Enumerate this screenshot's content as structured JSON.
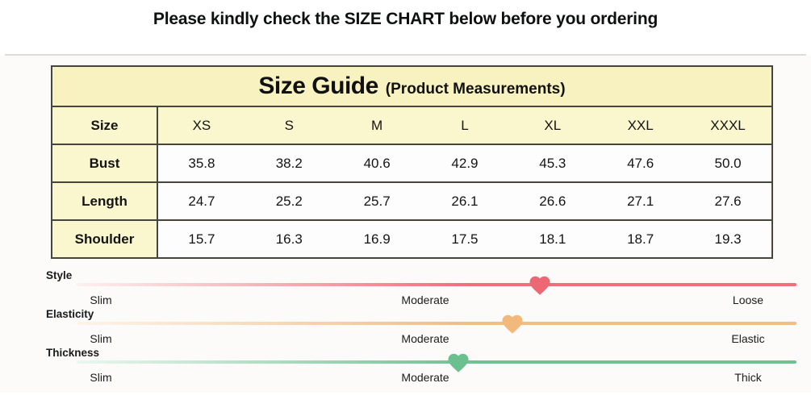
{
  "page": {
    "title": "Please kindly check the SIZE CHART below before you ordering"
  },
  "size_table": {
    "title": "Size Guide",
    "subtitle": "(Product Measurements)",
    "header": [
      "Size",
      "XS",
      "S",
      "M",
      "L",
      "XL",
      "XXL",
      "XXXL"
    ],
    "rows": [
      {
        "label": "Bust",
        "values": [
          "35.8",
          "38.2",
          "40.6",
          "42.9",
          "45.3",
          "47.6",
          "50.0"
        ]
      },
      {
        "label": "Length",
        "values": [
          "24.7",
          "25.2",
          "25.7",
          "26.1",
          "26.6",
          "27.1",
          "27.6"
        ]
      },
      {
        "label": "Shoulder",
        "values": [
          "15.7",
          "16.3",
          "16.9",
          "17.5",
          "18.1",
          "18.7",
          "19.3"
        ]
      }
    ]
  },
  "sliders": [
    {
      "name": "Style",
      "left_label": "Slim",
      "middle_label": "Moderate",
      "right_label": "Loose",
      "line_color": "#ee6e79",
      "line_light": "#fdf0f1",
      "heart_color": "#ec6874",
      "marker_percent": 64.3
    },
    {
      "name": "Elasticity",
      "left_label": "Slim",
      "middle_label": "Moderate",
      "right_label": "Elastic",
      "line_color": "#f2bc83",
      "line_light": "#fdf4e9",
      "heart_color": "#f2b87c",
      "marker_percent": 60.5
    },
    {
      "name": "Thickness",
      "left_label": "Slim",
      "middle_label": "Moderate",
      "right_label": "Thick",
      "line_color": "#6fc193",
      "line_light": "#ebf7f0",
      "heart_color": "#6cc08f",
      "marker_percent": 53.0
    }
  ],
  "colors": {
    "title_text": "#0f1111",
    "table_border": "#45453c",
    "header_yellow": "#f7f2c0",
    "row_yellow": "#faf7cf",
    "cell_white": "#fdfdfd",
    "divider": "#dcdcdc",
    "panel_bg": "#fcfbfa"
  },
  "chart_data": {
    "type": "table",
    "title": "Size Guide (Product Measurements)",
    "columns": [
      "Size",
      "XS",
      "S",
      "M",
      "L",
      "XL",
      "XXL",
      "XXXL"
    ],
    "rows": [
      [
        "Bust",
        35.8,
        38.2,
        40.6,
        42.9,
        45.3,
        47.6,
        50.0
      ],
      [
        "Length",
        24.7,
        25.2,
        25.7,
        26.1,
        26.6,
        27.1,
        27.6
      ],
      [
        "Shoulder",
        15.7,
        16.3,
        16.9,
        17.5,
        18.1,
        18.7,
        19.3
      ]
    ],
    "scales": [
      {
        "attribute": "Style",
        "endpoints": [
          "Slim",
          "Moderate",
          "Loose"
        ],
        "marker_fraction": 0.64
      },
      {
        "attribute": "Elasticity",
        "endpoints": [
          "Slim",
          "Moderate",
          "Elastic"
        ],
        "marker_fraction": 0.6
      },
      {
        "attribute": "Thickness",
        "endpoints": [
          "Slim",
          "Moderate",
          "Thick"
        ],
        "marker_fraction": 0.53
      }
    ]
  }
}
